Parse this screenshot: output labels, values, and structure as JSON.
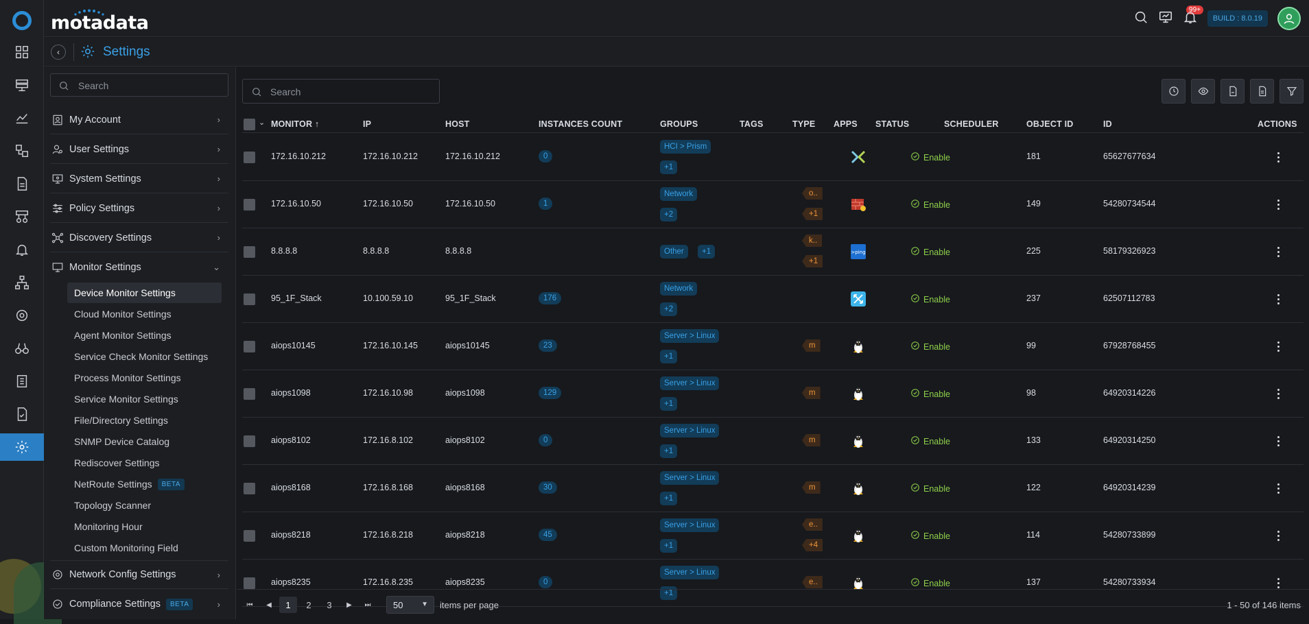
{
  "brand": "motadata",
  "topbar": {
    "notif_count": "99+",
    "build": "BUILD : 8.0.19"
  },
  "page": {
    "title": "Settings"
  },
  "sidebar": {
    "search_placeholder": "Search",
    "items": [
      {
        "label": "My Account"
      },
      {
        "label": "User Settings"
      },
      {
        "label": "System Settings"
      },
      {
        "label": "Policy Settings"
      },
      {
        "label": "Discovery Settings"
      },
      {
        "label": "Monitor Settings"
      }
    ],
    "sub_items": [
      {
        "label": "Device Monitor Settings"
      },
      {
        "label": "Cloud Monitor Settings"
      },
      {
        "label": "Agent Monitor Settings"
      },
      {
        "label": "Service Check Monitor Settings"
      },
      {
        "label": "Process Monitor Settings"
      },
      {
        "label": "Service Monitor Settings"
      },
      {
        "label": "File/Directory Settings"
      },
      {
        "label": "SNMP Device Catalog"
      },
      {
        "label": "Rediscover Settings"
      },
      {
        "label": "NetRoute Settings",
        "badge": "BETA"
      },
      {
        "label": "Topology Scanner"
      },
      {
        "label": "Monitoring Hour"
      },
      {
        "label": "Custom Monitoring Field"
      }
    ],
    "bottom_items": [
      {
        "label": "Network Config Settings"
      },
      {
        "label": "Compliance Settings",
        "badge": "BETA"
      }
    ]
  },
  "grid": {
    "search_placeholder": "Search",
    "columns": {
      "monitor": "MONITOR",
      "ip": "IP",
      "host": "HOST",
      "instances": "INSTANCES COUNT",
      "groups": "GROUPS",
      "tags": "TAGS",
      "type": "TYPE",
      "apps": "APPS",
      "status": "STATUS",
      "scheduler": "SCHEDULER",
      "object_id": "OBJECT ID",
      "id": "ID",
      "actions": "ACTIONS"
    },
    "rows": [
      {
        "monitor": "172.16.10.212",
        "ip": "172.16.10.212",
        "host": "172.16.10.212",
        "instances": "0",
        "groups": [
          "HCI > Prism",
          "+1"
        ],
        "tags": [],
        "type": "nutanix-icon",
        "status": "Enable",
        "object_id": "181",
        "id": "65627677634"
      },
      {
        "monitor": "172.16.10.50",
        "ip": "172.16.10.50",
        "host": "172.16.10.50",
        "instances": "1",
        "groups": [
          "Network",
          "+2"
        ],
        "tags": [
          "o..",
          "+1"
        ],
        "type": "firewall-icon",
        "status": "Enable",
        "object_id": "149",
        "id": "54280734544"
      },
      {
        "monitor": "8.8.8.8",
        "ip": "8.8.8.8",
        "host": "8.8.8.8",
        "instances": "",
        "groups": [
          "Other",
          "+1"
        ],
        "tags": [
          "k..",
          "+1"
        ],
        "type": "ping-icon",
        "status": "Enable",
        "object_id": "225",
        "id": "58179326923"
      },
      {
        "monitor": "95_1F_Stack",
        "ip": "10.100.59.10",
        "host": "95_1F_Stack",
        "instances": "176",
        "groups": [
          "Network",
          "+2"
        ],
        "tags": [],
        "type": "switch-icon",
        "status": "Enable",
        "object_id": "237",
        "id": "62507112783"
      },
      {
        "monitor": "aiops10145",
        "ip": "172.16.10.145",
        "host": "aiops10145",
        "instances": "23",
        "groups": [
          "Server > Linux",
          "+1"
        ],
        "tags": [
          "m"
        ],
        "type": "linux-icon",
        "status": "Enable",
        "object_id": "99",
        "id": "67928768455"
      },
      {
        "monitor": "aiops1098",
        "ip": "172.16.10.98",
        "host": "aiops1098",
        "instances": "129",
        "groups": [
          "Server > Linux",
          "+1"
        ],
        "tags": [
          "m"
        ],
        "type": "linux-icon",
        "status": "Enable",
        "object_id": "98",
        "id": "64920314226"
      },
      {
        "monitor": "aiops8102",
        "ip": "172.16.8.102",
        "host": "aiops8102",
        "instances": "0",
        "groups": [
          "Server > Linux",
          "+1"
        ],
        "tags": [
          "m"
        ],
        "type": "linux-icon",
        "status": "Enable",
        "object_id": "133",
        "id": "64920314250"
      },
      {
        "monitor": "aiops8168",
        "ip": "172.16.8.168",
        "host": "aiops8168",
        "instances": "30",
        "groups": [
          "Server > Linux",
          "+1"
        ],
        "tags": [
          "m"
        ],
        "type": "linux-icon",
        "status": "Enable",
        "object_id": "122",
        "id": "64920314239"
      },
      {
        "monitor": "aiops8218",
        "ip": "172.16.8.218",
        "host": "aiops8218",
        "instances": "45",
        "groups": [
          "Server > Linux",
          "+1"
        ],
        "tags": [
          "e..",
          "+4"
        ],
        "type": "linux-icon",
        "status": "Enable",
        "object_id": "114",
        "id": "54280733899"
      },
      {
        "monitor": "aiops8235",
        "ip": "172.16.8.235",
        "host": "aiops8235",
        "instances": "0",
        "groups": [
          "Server > Linux",
          "+1"
        ],
        "tags": [
          "e.."
        ],
        "type": "linux-icon",
        "status": "Enable",
        "object_id": "137",
        "id": "54280733934"
      }
    ]
  },
  "pager": {
    "pages": [
      "1",
      "2",
      "3"
    ],
    "per_page": "50",
    "per_page_label": "items per page",
    "summary": "1 - 50 of 146 items"
  }
}
